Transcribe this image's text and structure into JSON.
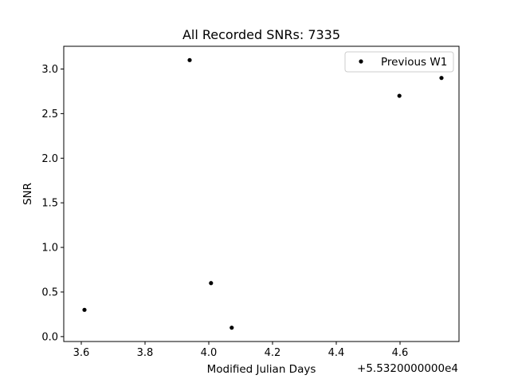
{
  "chart_data": {
    "type": "scatter",
    "title": "All Recorded SNRs: 7335",
    "xlabel": "Modified Julian Days",
    "ylabel": "SNR",
    "x_offset_label": "+5.5320000000e4",
    "xlim": [
      3.545,
      4.785
    ],
    "ylim": [
      -0.055,
      3.255
    ],
    "x_ticks": [
      3.6,
      3.8,
      4.0,
      4.2,
      4.4,
      4.6
    ],
    "x_tick_labels": [
      "3.6",
      "3.8",
      "4.0",
      "4.2",
      "4.4",
      "4.6"
    ],
    "y_ticks": [
      0.0,
      0.5,
      1.0,
      1.5,
      2.0,
      2.5,
      3.0
    ],
    "y_tick_labels": [
      "0.0",
      "0.5",
      "1.0",
      "1.5",
      "2.0",
      "2.5",
      "3.0"
    ],
    "grid": false,
    "legend_position": "upper-right",
    "series": [
      {
        "name": "Previous W1",
        "color": "#000000",
        "marker": "circle",
        "x": [
          3.61,
          3.94,
          4.007,
          4.072,
          4.598,
          4.73
        ],
        "y": [
          0.3,
          3.1,
          0.6,
          0.1,
          2.7,
          2.9
        ]
      }
    ]
  }
}
